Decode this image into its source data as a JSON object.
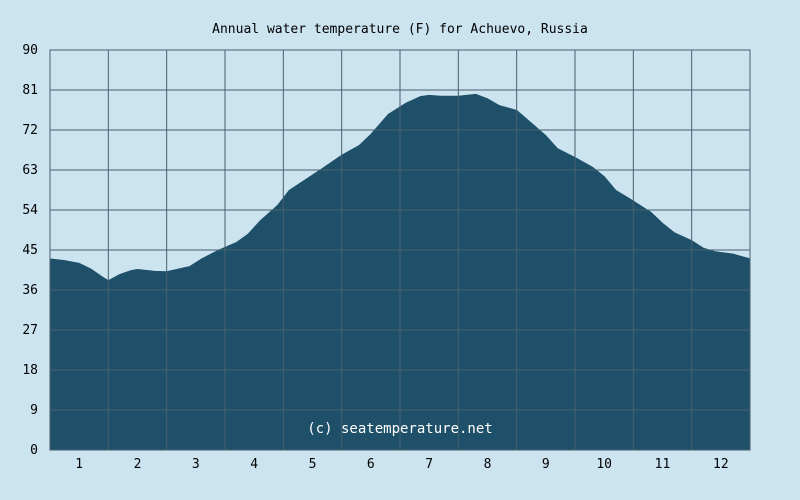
{
  "colors": {
    "background": "#cce3f0",
    "plot_background": "#cce3f0",
    "area_fill": "#1f5069",
    "grid": "#48606e",
    "text": "#000000",
    "watermark": "#ffffff"
  },
  "watermark": "(c) seatemperature.net",
  "chart_data": {
    "type": "area",
    "title": "Annual water temperature (F) for Achuevo, Russia",
    "xlabel": "",
    "ylabel": "",
    "x_tick_labels": [
      "1",
      "2",
      "3",
      "4",
      "5",
      "6",
      "7",
      "8",
      "9",
      "10",
      "11",
      "12"
    ],
    "y_tick_labels": [
      "0",
      "9",
      "18",
      "27",
      "36",
      "45",
      "54",
      "63",
      "72",
      "81",
      "90"
    ],
    "xlim": [
      0.5,
      12.5
    ],
    "ylim": [
      0,
      90
    ],
    "grid": true,
    "legend": "none",
    "series": [
      {
        "x": [
          0.5,
          0.75,
          1.0,
          1.2,
          1.4,
          1.5,
          1.7,
          1.9,
          2.0,
          2.3,
          2.5,
          2.7,
          2.9,
          3.1,
          3.4,
          3.7,
          3.9,
          4.1,
          4.4,
          4.6,
          4.9,
          5.2,
          5.5,
          5.8,
          6.0,
          6.3,
          6.6,
          6.85,
          7.0,
          7.2,
          7.5,
          7.8,
          8.0,
          8.2,
          8.5,
          8.8,
          9.0,
          9.2,
          9.5,
          9.8,
          10.0,
          10.2,
          10.5,
          10.8,
          11.0,
          11.2,
          11.5,
          11.7,
          11.9,
          12.2,
          12.5
        ],
        "values": [
          43.0,
          42.6,
          42.0,
          40.7,
          38.9,
          38.1,
          39.5,
          40.4,
          40.6,
          40.2,
          40.1,
          40.7,
          41.3,
          43.0,
          45.0,
          46.7,
          48.6,
          51.5,
          55.0,
          58.4,
          61.0,
          63.6,
          66.3,
          68.5,
          71.0,
          75.5,
          78.0,
          79.5,
          79.8,
          79.6,
          79.6,
          80.0,
          79.0,
          77.5,
          76.4,
          73.0,
          70.7,
          67.8,
          65.8,
          63.6,
          61.5,
          58.4,
          56.0,
          53.5,
          51.0,
          48.9,
          47.1,
          45.4,
          44.6,
          44.1,
          43.0
        ]
      }
    ]
  }
}
